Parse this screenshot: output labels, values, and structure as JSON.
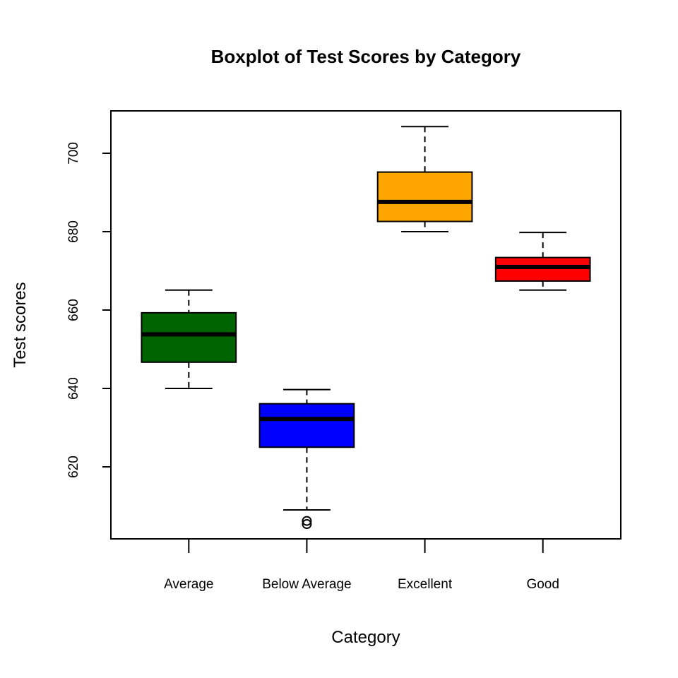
{
  "chart_data": {
    "type": "boxplot",
    "title": "Boxplot of Test Scores by Category",
    "xlabel": "Category",
    "ylabel": "Test scores",
    "ylim": [
      600,
      710
    ],
    "yticks": [
      620,
      640,
      660,
      680,
      700
    ],
    "categories": [
      "Average",
      "Below Average",
      "Excellent",
      "Good"
    ],
    "boxes": [
      {
        "category": "Average",
        "color": "#006400",
        "whisker_low": 640,
        "q1": 646.7,
        "median": 653.8,
        "q3": 659.3,
        "whisker_high": 665.1,
        "outliers": []
      },
      {
        "category": "Below Average",
        "color": "#0000FF",
        "whisker_low": 609,
        "q1": 625,
        "median": 632.2,
        "q3": 636.1,
        "whisker_high": 639.7,
        "outliers": [
          605.4,
          606.2
        ]
      },
      {
        "category": "Excellent",
        "color": "#FFA500",
        "whisker_low": 680,
        "q1": 682.6,
        "median": 687.6,
        "q3": 695.2,
        "whisker_high": 706.8,
        "outliers": []
      },
      {
        "category": "Good",
        "color": "#FF0000",
        "whisker_low": 665.1,
        "q1": 667.4,
        "median": 671,
        "q3": 673.4,
        "whisker_high": 679.8,
        "outliers": []
      }
    ],
    "grid": false,
    "legend": "none"
  }
}
